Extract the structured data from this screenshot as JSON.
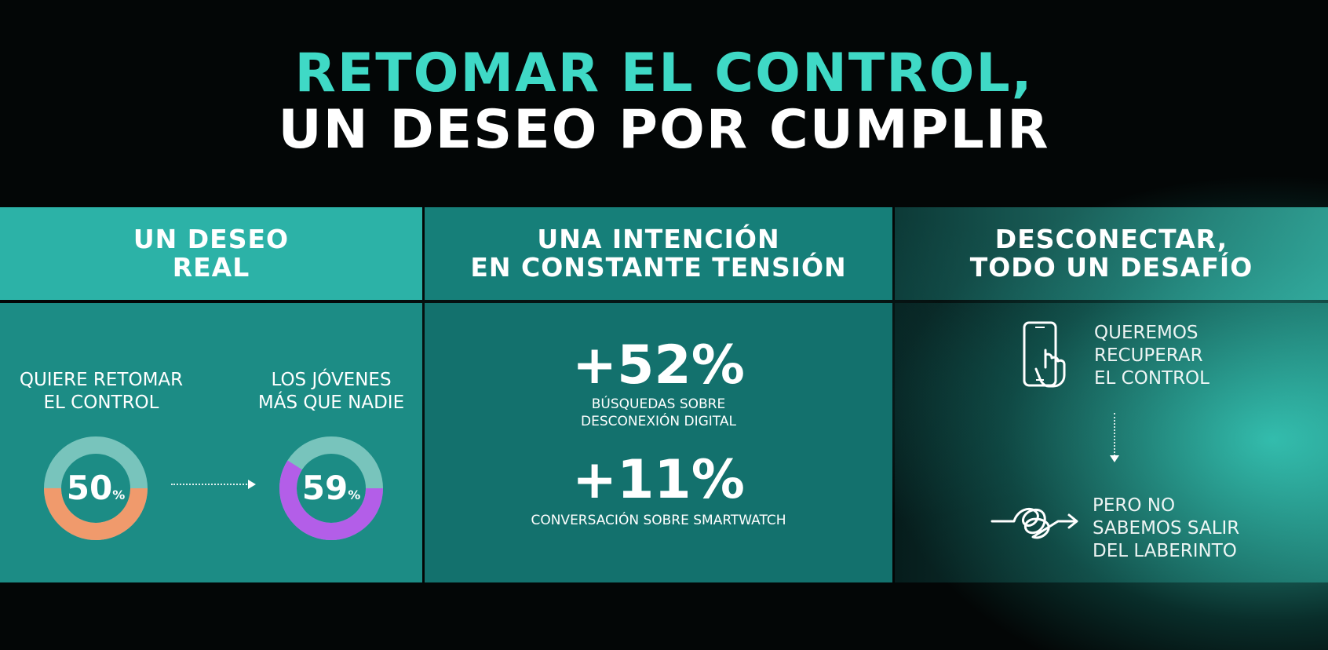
{
  "title": {
    "line1": "RETOMAR EL CONTROL,",
    "line2": "UN DESEO POR CUMPLIR"
  },
  "panels": [
    {
      "heading_line1": "UN DESEO",
      "heading_line2": "REAL",
      "left_label_line1": "QUIERE RETOMAR",
      "left_label_line2": "EL CONTROL",
      "left_value": "50",
      "left_pct": "%",
      "left_fraction": 0.5,
      "left_color": "#f09a6c",
      "right_label_line1": "LOS JÓVENES",
      "right_label_line2": "MÁS QUE NADIE",
      "right_value": "59",
      "right_pct": "%",
      "right_fraction": 0.59,
      "right_color": "#b35ee8",
      "track_color": "#78c4bc"
    },
    {
      "heading_line1": "UNA INTENCIÓN",
      "heading_line2": "EN CONSTANTE TENSIÓN",
      "stat1_value": "+52%",
      "stat1_label_line1": "BÚSQUEDAS SOBRE",
      "stat1_label_line2": "DESCONEXIÓN DIGITAL",
      "stat2_value": "+11%",
      "stat2_label": "CONVERSACIÓN SOBRE SMARTWATCH"
    },
    {
      "heading_line1": "DESCONECTAR,",
      "heading_line2": "TODO UN DESAFÍO",
      "text1_line1": "QUEREMOS",
      "text1_line2": "RECUPERAR",
      "text1_line3": "EL CONTROL",
      "icon1": "phone-touch-icon",
      "text2_line1": "PERO NO",
      "text2_line2": "SABEMOS SALIR",
      "text2_line3": "DEL LABERINTO",
      "icon2": "tangled-arrow-icon"
    }
  ]
}
